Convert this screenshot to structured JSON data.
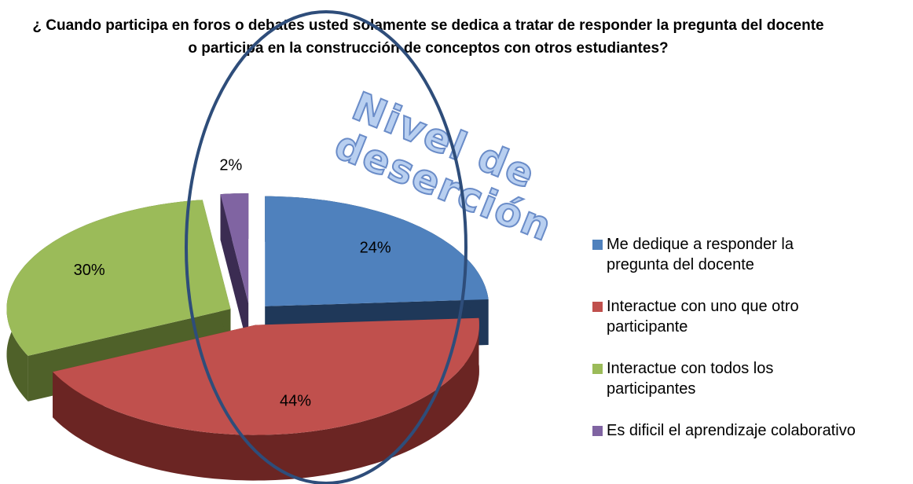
{
  "chart_data": {
    "type": "pie3d",
    "title": "¿ Cuando participa en foros o debates usted solamente se dedica a tratar de responder la pregunta del docente o participa en la construcción de conceptos con otros estudiantes?",
    "annotation": "Nivel de deserción",
    "series": [
      {
        "name": "Me dedique a responder la pregunta del docente",
        "color": "#4f81bd",
        "side_color": "#1f3859"
      },
      {
        "name": "Interactue con uno que otro participante",
        "color": "#c0504d",
        "side_color": "#6b2523"
      },
      {
        "name": "Interactue con todos los participantes",
        "color": "#9bbb59",
        "side_color": "#4f6129"
      },
      {
        "name": "Es dificil el aprendizaje colaborativo",
        "color": "#8064a2",
        "side_color": "#3b2c52"
      }
    ],
    "values": [
      24,
      44,
      30,
      2
    ],
    "value_labels": [
      "24%",
      "44%",
      "30%",
      "2%"
    ],
    "legend": "right"
  }
}
